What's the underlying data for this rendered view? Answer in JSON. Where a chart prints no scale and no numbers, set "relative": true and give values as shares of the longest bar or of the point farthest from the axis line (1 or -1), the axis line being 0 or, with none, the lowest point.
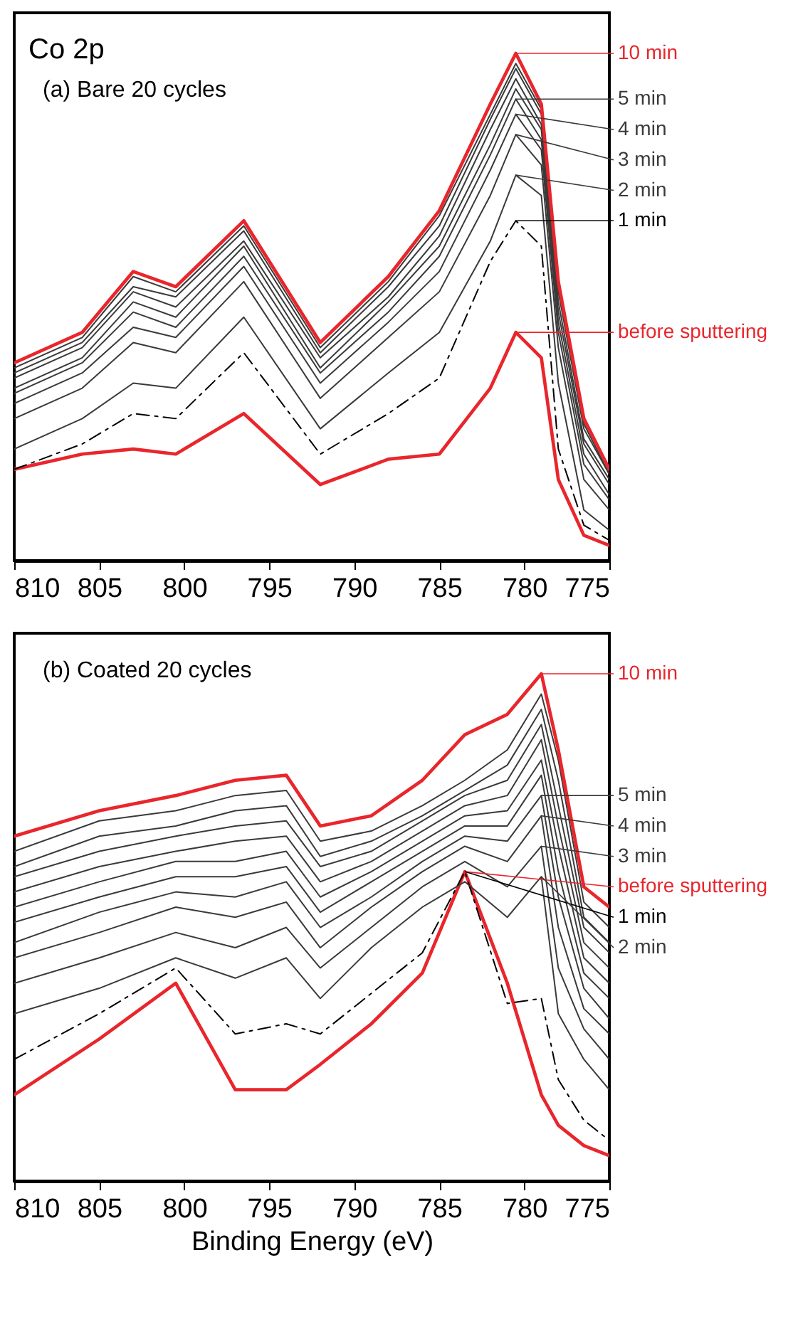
{
  "chart_data": [
    {
      "type": "line",
      "title": "Co 2p",
      "annotations": [
        "(a) Bare 20 cycles"
      ],
      "relative": true,
      "tick_labels": "x",
      "xlim": [
        810,
        775
      ],
      "xticks": [
        810,
        805,
        800,
        795,
        790,
        785,
        780,
        775
      ],
      "legend": "right",
      "marker": "none",
      "x": [
        810,
        806,
        803,
        800.5,
        796.5,
        792,
        788,
        785,
        782,
        780.5,
        779,
        778,
        776.5,
        775
      ],
      "series": [
        {
          "name": "before sputtering",
          "color": "#e8262c",
          "line_style": "solid",
          "values": [
            0.18,
            0.21,
            0.22,
            0.21,
            0.29,
            0.15,
            0.2,
            0.21,
            0.34,
            0.45,
            0.4,
            0.16,
            0.05,
            0.03
          ]
        },
        {
          "name": "1 min",
          "color": "#000000",
          "line_style": "dashed",
          "values": [
            0.18,
            0.23,
            0.29,
            0.28,
            0.41,
            0.21,
            0.29,
            0.36,
            0.59,
            0.67,
            0.62,
            0.22,
            0.07,
            0.04
          ]
        },
        {
          "name": "2 min",
          "color": "#3a3a3a",
          "line_style": "solid",
          "values": [
            0.22,
            0.28,
            0.35,
            0.34,
            0.48,
            0.26,
            0.37,
            0.45,
            0.63,
            0.76,
            0.72,
            0.35,
            0.1,
            0.06
          ]
        },
        {
          "name": "3 min",
          "color": "#3a3a3a",
          "line_style": "solid",
          "values": [
            0.28,
            0.34,
            0.43,
            0.41,
            0.55,
            0.32,
            0.44,
            0.53,
            0.72,
            0.84,
            0.78,
            0.42,
            0.16,
            0.1
          ]
        },
        {
          "name": "4 min",
          "color": "#3a3a3a",
          "line_style": "solid",
          "values": [
            0.31,
            0.37,
            0.46,
            0.44,
            0.58,
            0.35,
            0.47,
            0.57,
            0.77,
            0.88,
            0.81,
            0.45,
            0.19,
            0.12
          ]
        },
        {
          "name": "5 min",
          "color": "#3a3a3a",
          "line_style": "solid",
          "values": [
            0.33,
            0.39,
            0.49,
            0.46,
            0.6,
            0.37,
            0.49,
            0.6,
            0.8,
            0.91,
            0.83,
            0.47,
            0.21,
            0.13
          ]
        },
        {
          "color": "#3a3a3a",
          "line_style": "solid",
          "values": [
            0.34,
            0.4,
            0.51,
            0.48,
            0.62,
            0.38,
            0.51,
            0.62,
            0.82,
            0.93,
            0.85,
            0.49,
            0.23,
            0.15
          ]
        },
        {
          "color": "#3a3a3a",
          "line_style": "solid",
          "values": [
            0.36,
            0.42,
            0.53,
            0.5,
            0.63,
            0.4,
            0.52,
            0.64,
            0.85,
            0.95,
            0.86,
            0.51,
            0.24,
            0.16
          ]
        },
        {
          "color": "#3a3a3a",
          "line_style": "solid",
          "values": [
            0.37,
            0.43,
            0.54,
            0.52,
            0.65,
            0.41,
            0.54,
            0.66,
            0.87,
            0.97,
            0.88,
            0.53,
            0.26,
            0.17
          ]
        },
        {
          "color": "#3a3a3a",
          "line_style": "solid",
          "values": [
            0.38,
            0.44,
            0.56,
            0.53,
            0.66,
            0.42,
            0.55,
            0.68,
            0.88,
            0.98,
            0.89,
            0.54,
            0.27,
            0.17
          ]
        },
        {
          "name": "10 min",
          "color": "#e8262c",
          "line_style": "solid",
          "values": [
            0.39,
            0.45,
            0.57,
            0.54,
            0.67,
            0.43,
            0.56,
            0.69,
            0.9,
            1.0,
            0.9,
            0.55,
            0.28,
            0.18
          ]
        }
      ]
    },
    {
      "type": "line",
      "annotations": [
        "(b) Coated 20 cycles"
      ],
      "relative": true,
      "tick_labels": "x",
      "xlabel": "Binding Energy (eV)",
      "xlim": [
        810,
        775
      ],
      "xticks": [
        810,
        805,
        800,
        795,
        790,
        785,
        780,
        775
      ],
      "legend": "right",
      "marker": "none",
      "x": [
        810,
        805,
        800.5,
        797,
        794,
        792,
        789,
        786,
        783.5,
        781,
        779,
        778,
        776.5,
        775
      ],
      "series": [
        {
          "name": "before sputtering",
          "color": "#e8262c",
          "line_style": "solid",
          "values": [
            0.17,
            0.28,
            0.39,
            0.18,
            0.18,
            0.23,
            0.31,
            0.41,
            0.61,
            0.39,
            0.17,
            0.11,
            0.07,
            0.05
          ]
        },
        {
          "name": "1 min",
          "color": "#000000",
          "line_style": "dashed",
          "values": [
            0.24,
            0.33,
            0.42,
            0.29,
            0.31,
            0.29,
            0.37,
            0.45,
            0.61,
            0.35,
            0.36,
            0.2,
            0.12,
            0.08
          ]
        },
        {
          "name": "2 min",
          "color": "#3a3a3a",
          "line_style": "solid",
          "values": [
            0.33,
            0.38,
            0.44,
            0.4,
            0.44,
            0.36,
            0.46,
            0.54,
            0.59,
            0.52,
            0.6,
            0.33,
            0.24,
            0.18
          ]
        },
        {
          "name": "3 min",
          "color": "#3a3a3a",
          "line_style": "solid",
          "values": [
            0.39,
            0.44,
            0.49,
            0.46,
            0.5,
            0.42,
            0.5,
            0.58,
            0.63,
            0.58,
            0.66,
            0.42,
            0.3,
            0.24
          ]
        },
        {
          "name": "4 min",
          "color": "#3a3a3a",
          "line_style": "solid",
          "values": [
            0.44,
            0.49,
            0.54,
            0.52,
            0.55,
            0.46,
            0.54,
            0.61,
            0.66,
            0.63,
            0.72,
            0.5,
            0.34,
            0.29
          ]
        },
        {
          "name": "5 min",
          "color": "#3a3a3a",
          "line_style": "solid",
          "values": [
            0.47,
            0.53,
            0.57,
            0.56,
            0.59,
            0.5,
            0.56,
            0.63,
            0.68,
            0.67,
            0.76,
            0.56,
            0.38,
            0.32
          ]
        },
        {
          "color": "#3a3a3a",
          "line_style": "solid",
          "values": [
            0.51,
            0.56,
            0.6,
            0.6,
            0.62,
            0.53,
            0.59,
            0.65,
            0.7,
            0.7,
            0.8,
            0.61,
            0.41,
            0.36
          ]
        },
        {
          "color": "#3a3a3a",
          "line_style": "solid",
          "values": [
            0.54,
            0.59,
            0.63,
            0.63,
            0.65,
            0.56,
            0.61,
            0.67,
            0.72,
            0.73,
            0.83,
            0.66,
            0.44,
            0.39
          ]
        },
        {
          "color": "#3a3a3a",
          "line_style": "solid",
          "values": [
            0.57,
            0.62,
            0.65,
            0.67,
            0.68,
            0.59,
            0.63,
            0.69,
            0.74,
            0.76,
            0.87,
            0.7,
            0.47,
            0.42
          ]
        },
        {
          "color": "#3a3a3a",
          "line_style": "solid",
          "values": [
            0.6,
            0.65,
            0.68,
            0.7,
            0.71,
            0.62,
            0.65,
            0.71,
            0.76,
            0.79,
            0.9,
            0.74,
            0.5,
            0.45
          ]
        },
        {
          "color": "#3a3a3a",
          "line_style": "solid",
          "values": [
            0.62,
            0.68,
            0.7,
            0.73,
            0.74,
            0.64,
            0.67,
            0.72,
            0.77,
            0.82,
            0.93,
            0.79,
            0.52,
            0.47
          ]
        },
        {
          "color": "#3a3a3a",
          "line_style": "solid",
          "values": [
            0.65,
            0.71,
            0.73,
            0.76,
            0.77,
            0.67,
            0.69,
            0.74,
            0.79,
            0.85,
            0.96,
            0.83,
            0.55,
            0.5
          ]
        },
        {
          "name": "10 min",
          "color": "#e8262c",
          "line_style": "solid",
          "values": [
            0.68,
            0.73,
            0.76,
            0.79,
            0.8,
            0.7,
            0.72,
            0.79,
            0.88,
            0.92,
            1.0,
            0.85,
            0.58,
            0.54
          ]
        }
      ]
    }
  ]
}
